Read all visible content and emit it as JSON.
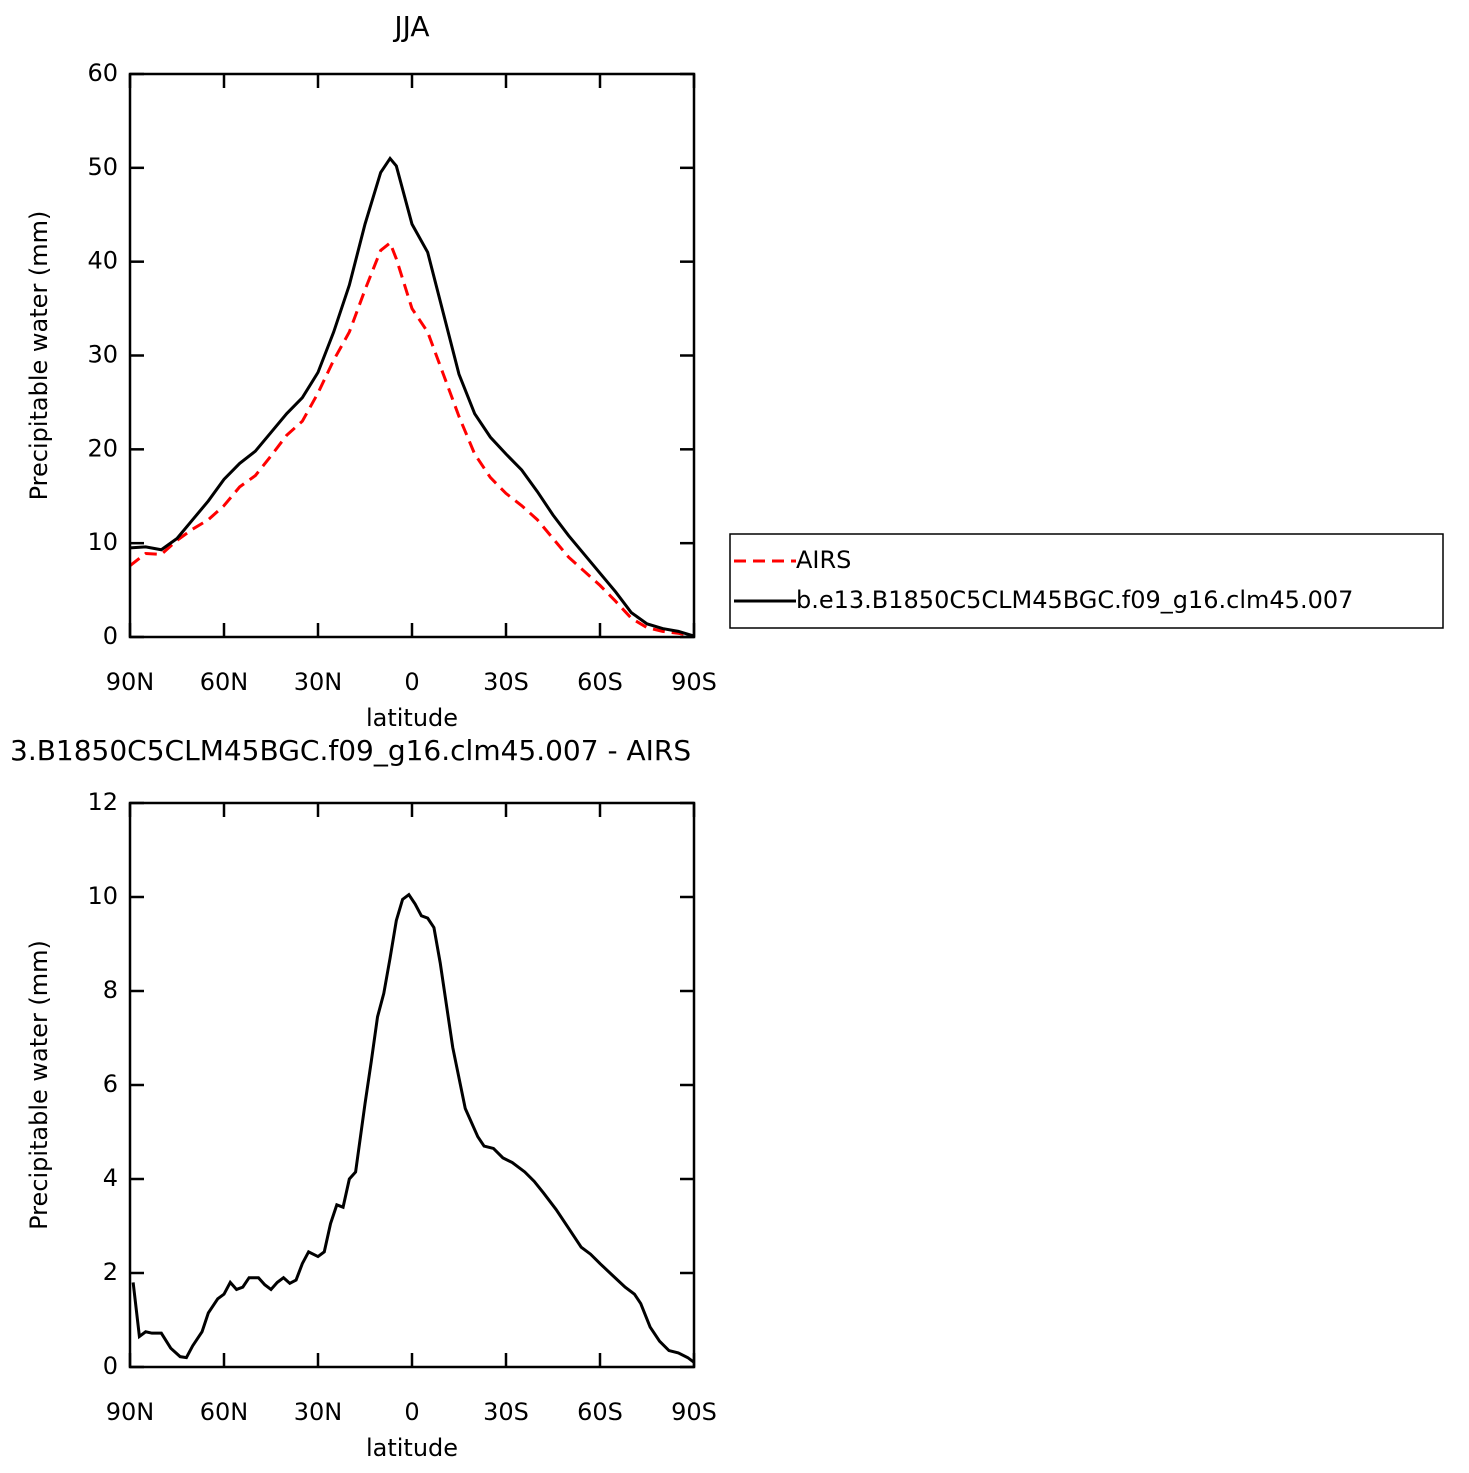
{
  "chart_data": [
    {
      "type": "line",
      "title": "JJA",
      "x_label": "latitude",
      "y_label": "Precipitable water (mm)",
      "x": [
        90,
        85,
        80,
        75,
        70,
        65,
        60,
        55,
        50,
        45,
        40,
        35,
        30,
        25,
        20,
        15,
        10,
        7,
        5,
        0,
        -5,
        -10,
        -15,
        -20,
        -25,
        -30,
        -35,
        -40,
        -45,
        -50,
        -55,
        -60,
        -65,
        -70,
        -75,
        -80,
        -85,
        -90
      ],
      "series": [
        {
          "name": "AIRS",
          "color": "#ff0000",
          "line_style": "dashed",
          "values": [
            7.6,
            8.9,
            8.8,
            10.3,
            11.5,
            12.5,
            14,
            16,
            17.2,
            19.3,
            21.5,
            23,
            26,
            29.5,
            32.5,
            37,
            41.2,
            42,
            40.3,
            35,
            32.5,
            28,
            23.5,
            19.5,
            17,
            15.3,
            14,
            12.5,
            10.5,
            8.5,
            7,
            5.5,
            3.8,
            2,
            1,
            0.6,
            0.4,
            0.1
          ]
        },
        {
          "name": "b.e13.B1850C5CLM45BGC.f09_g16.clm45.007",
          "color": "#000000",
          "line_style": "solid",
          "values": [
            9.5,
            9.6,
            9.3,
            10.5,
            12.5,
            14.5,
            16.8,
            18.5,
            19.8,
            21.8,
            23.8,
            25.5,
            28.2,
            32.5,
            37.5,
            44,
            49.5,
            51,
            50.2,
            44,
            41,
            34.5,
            28,
            23.8,
            21.3,
            19.5,
            17.8,
            15.5,
            13,
            10.8,
            8.8,
            6.8,
            4.8,
            2.6,
            1.4,
            0.9,
            0.6,
            0.1
          ]
        }
      ],
      "xlim": [
        90,
        -90
      ],
      "xticks": [
        {
          "value": 90,
          "label": "90N"
        },
        {
          "value": 60,
          "label": "60N"
        },
        {
          "value": 30,
          "label": "30N"
        },
        0,
        {
          "value": -30,
          "label": "30S"
        },
        {
          "value": -60,
          "label": "60S"
        },
        {
          "value": -90,
          "label": "90S"
        }
      ],
      "ylim": [
        0,
        60
      ],
      "yticks": [
        0,
        10,
        20,
        30,
        40,
        50,
        60
      ],
      "legend": "right"
    },
    {
      "type": "line",
      "title": "3.B1850C5CLM45BGC.f09_g16.clm45.007 - AIRS",
      "x_label": "latitude",
      "y_label": "Precipitable water (mm)",
      "x": [
        89,
        87,
        85,
        83,
        80,
        77,
        74,
        72,
        70,
        67,
        65,
        62,
        60,
        58,
        56,
        54,
        52,
        49,
        47,
        45,
        43,
        41,
        39,
        37,
        35,
        33,
        30,
        28,
        26,
        24,
        22,
        20,
        18,
        15,
        13,
        11,
        9,
        7,
        5,
        3,
        1,
        -1,
        -3,
        -5,
        -7,
        -9,
        -11,
        -13,
        -17,
        -21,
        -23,
        -26,
        -29,
        -32,
        -36,
        -39,
        -42,
        -46,
        -50,
        -54,
        -57,
        -60,
        -64,
        -68,
        -71,
        -73,
        -76,
        -79,
        -82,
        -85,
        -88,
        -90
      ],
      "values": [
        1.8,
        0.65,
        0.75,
        0.72,
        0.72,
        0.4,
        0.22,
        0.2,
        0.45,
        0.75,
        1.15,
        1.45,
        1.55,
        1.8,
        1.65,
        1.7,
        1.9,
        1.9,
        1.75,
        1.65,
        1.8,
        1.9,
        1.78,
        1.85,
        2.2,
        2.45,
        2.35,
        2.45,
        3.05,
        3.45,
        3.4,
        4.0,
        4.15,
        5.6,
        6.5,
        7.45,
        7.95,
        8.7,
        9.5,
        9.95,
        10.05,
        9.85,
        9.6,
        9.55,
        9.35,
        8.6,
        7.7,
        6.8,
        5.5,
        4.9,
        4.7,
        4.65,
        4.45,
        4.35,
        4.15,
        3.95,
        3.7,
        3.35,
        2.95,
        2.55,
        2.4,
        2.2,
        1.95,
        1.7,
        1.55,
        1.35,
        0.85,
        0.55,
        0.35,
        0.3,
        0.2,
        0.1
      ],
      "color": "#000000",
      "xlim": [
        90,
        -90
      ],
      "xticks": [
        {
          "value": 90,
          "label": "90N"
        },
        {
          "value": 60,
          "label": "60N"
        },
        {
          "value": 30,
          "label": "30N"
        },
        0,
        {
          "value": -30,
          "label": "30S"
        },
        {
          "value": -60,
          "label": "60S"
        },
        {
          "value": -90,
          "label": "90S"
        }
      ],
      "ylim": [
        0,
        12
      ],
      "yticks": [
        0,
        2,
        4,
        6,
        8,
        10,
        12
      ]
    }
  ]
}
